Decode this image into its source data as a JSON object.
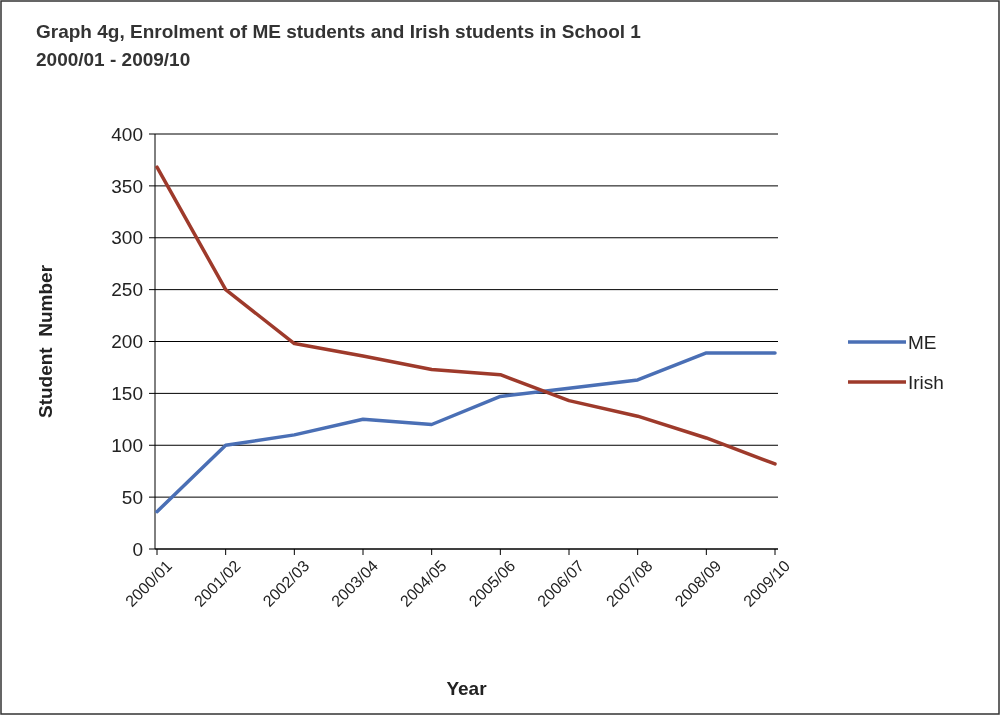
{
  "chart_data": {
    "type": "line",
    "title": "Graph 4g, Enrolment of ME students and Irish students in School 1\n2000/01 - 2009/10",
    "xlabel": "Year",
    "ylabel": "Student  Number",
    "categories": [
      "2000/01",
      "2001/02",
      "2002/03",
      "2003/04",
      "2004/05",
      "2005/06",
      "2006/07",
      "2007/08",
      "2008/09",
      "2009/10"
    ],
    "series": [
      {
        "name": "ME",
        "color": "#4a6fb5",
        "values": [
          36,
          100,
          110,
          125,
          120,
          147,
          155,
          163,
          189,
          189
        ]
      },
      {
        "name": "Irish",
        "color": "#9e3a2b",
        "values": [
          368,
          250,
          198,
          186,
          173,
          168,
          143,
          128,
          107,
          82
        ]
      }
    ],
    "ylim": [
      0,
      400
    ],
    "yticks": [
      0,
      50,
      100,
      150,
      200,
      250,
      300,
      350,
      400
    ],
    "grid": "y",
    "legend": "right",
    "marker": "none",
    "line_style": "solid"
  }
}
